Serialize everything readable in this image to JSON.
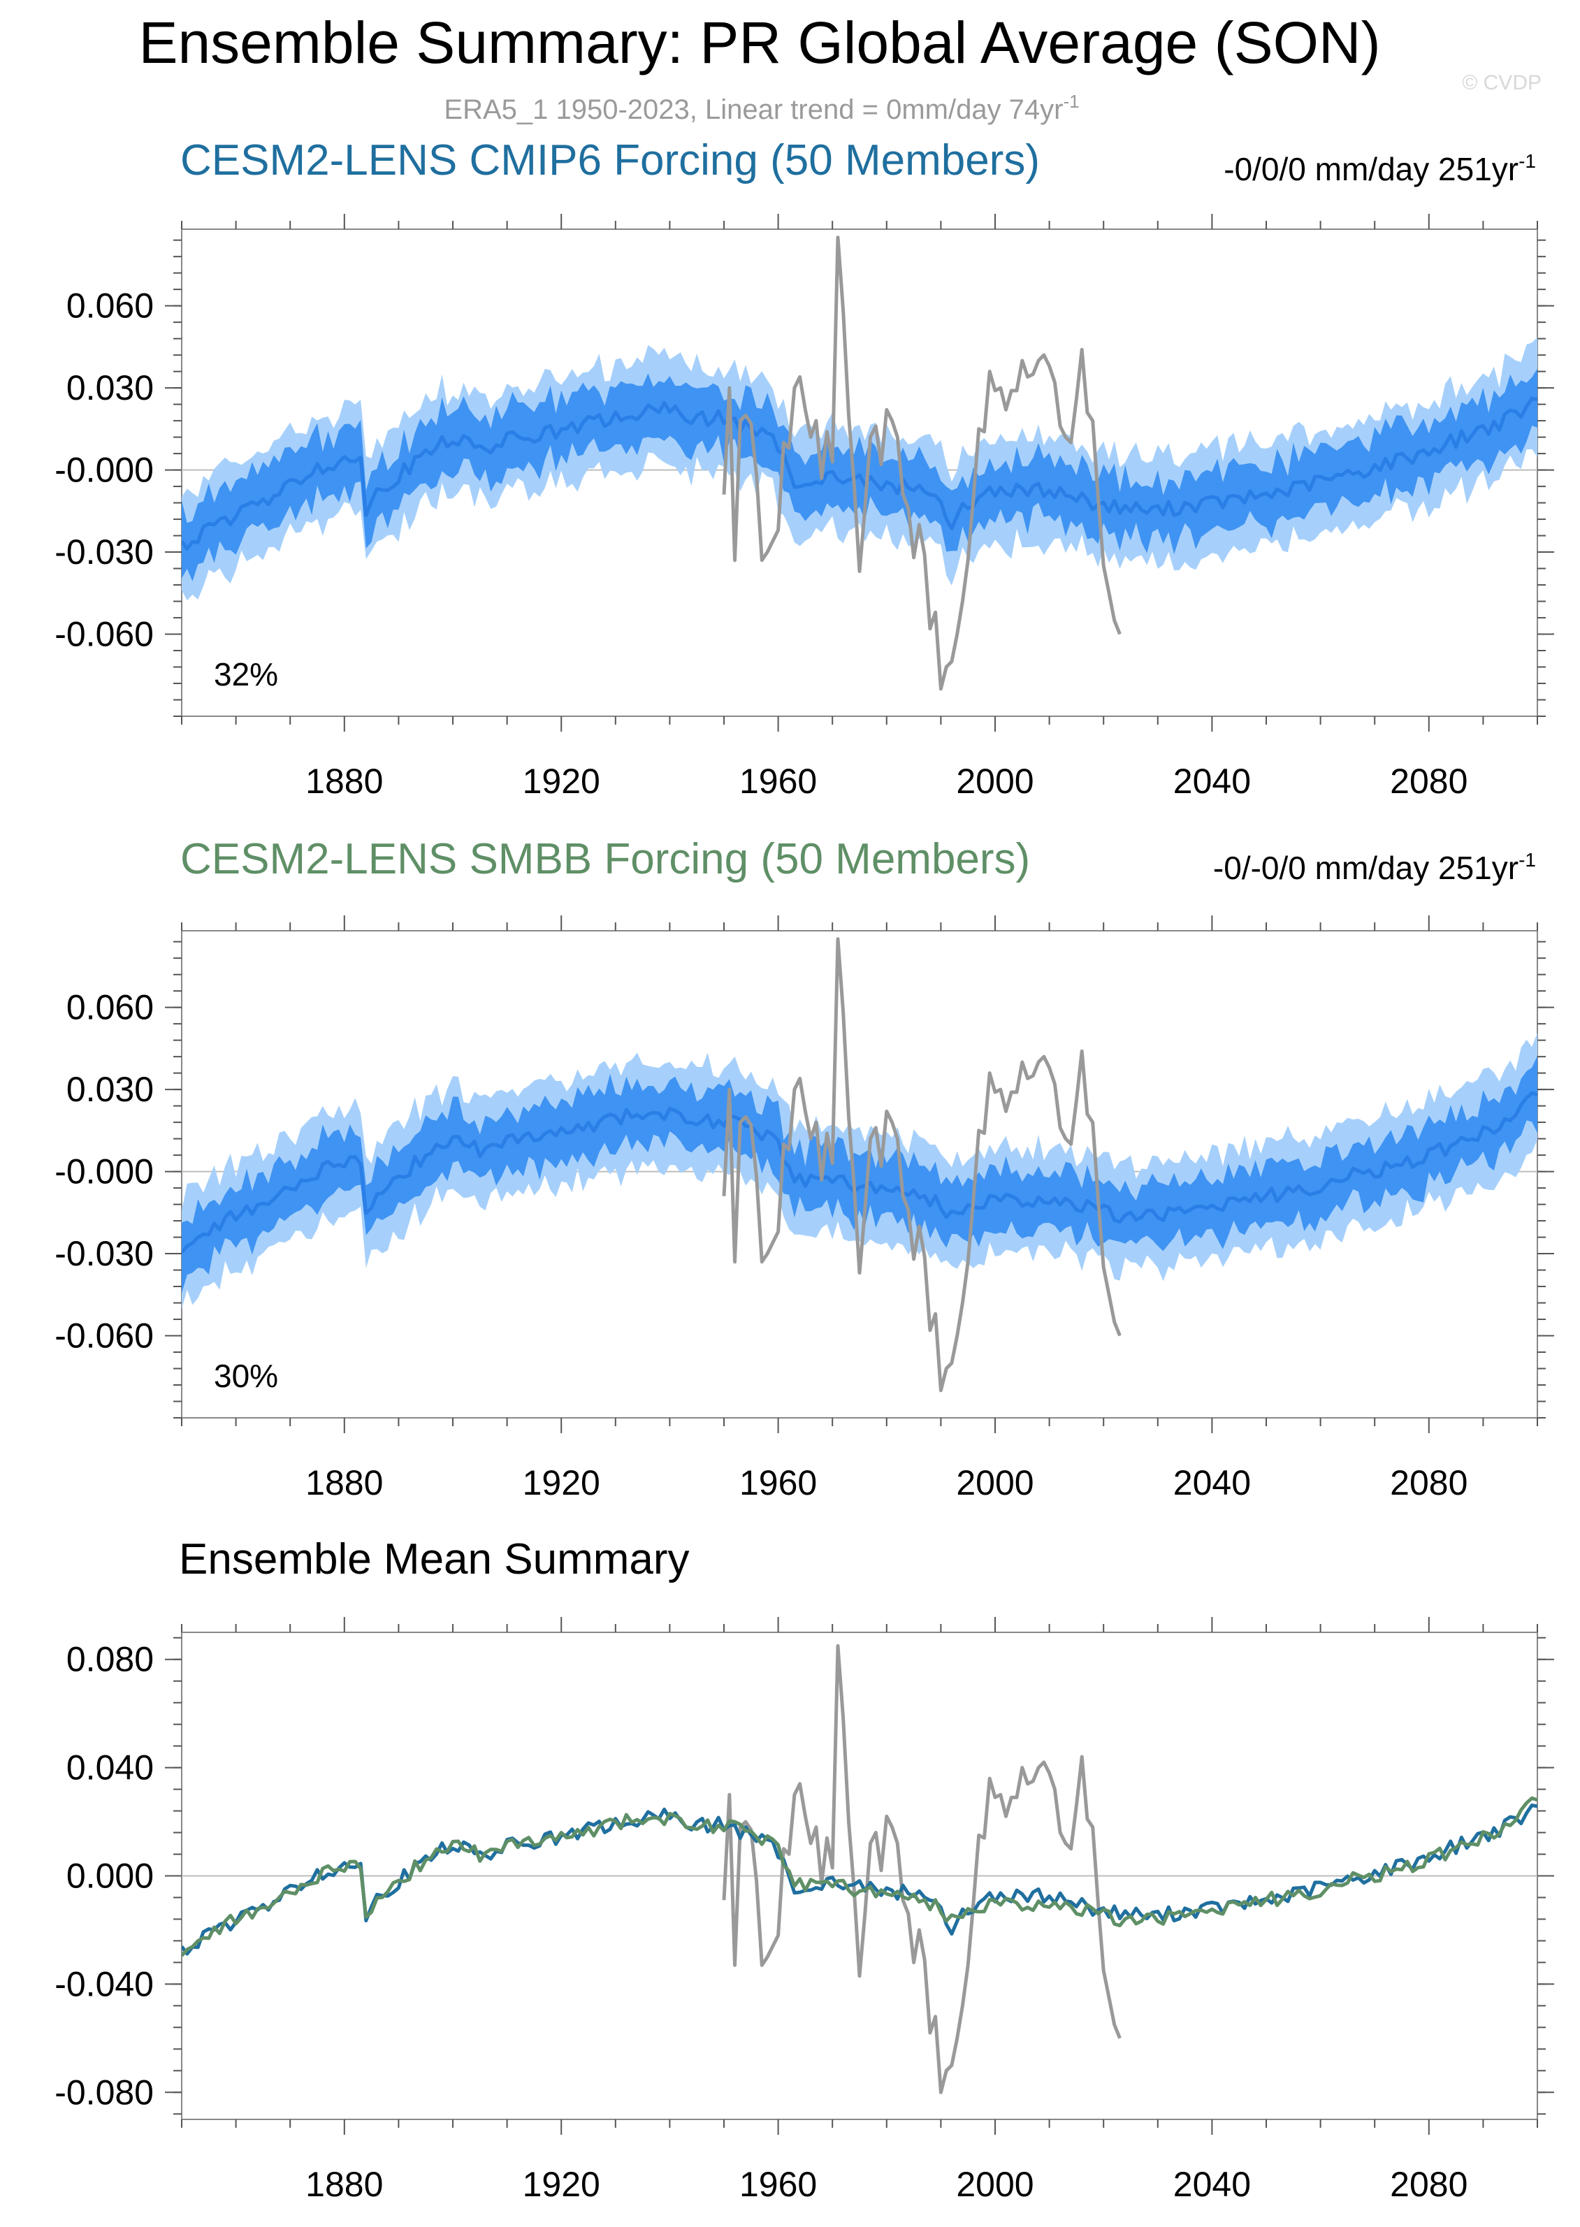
{
  "header": {
    "title": "Ensemble Summary: PR Global Average (SON)",
    "subtitle": "ERA5_1 1950-2023, Linear trend = 0mm/day 74yr",
    "subtitle_sup": "-1",
    "watermark": "© CVDP"
  },
  "colors": {
    "obs": "#999999",
    "band_outer": "#a6d0fb",
    "band_inner": "#3f93f2",
    "mean_line": "#2a7ee6",
    "cmip6_title": "#1f6f9f",
    "smbb_title": "#5f8f66",
    "zero_line": "#bdbdbd"
  },
  "panels": [
    {
      "title": "CESM2-LENS CMIP6 Forcing (50 Members)",
      "trend_label": "-0/0/0 mm/day 251yr",
      "trend_sup": "-1",
      "percent_label": "32%"
    },
    {
      "title": "CESM2-LENS SMBB Forcing (50 Members)",
      "trend_label": "-0/-0/0 mm/day 251yr",
      "trend_sup": "-1",
      "percent_label": "30%"
    },
    {
      "title": "Ensemble Mean Summary"
    }
  ],
  "chart_data": [
    {
      "type": "area",
      "title": "CESM2-LENS CMIP6 Forcing (50 Members)",
      "xlabel": "",
      "ylabel": "mm/day",
      "xlim": [
        1850,
        2100
      ],
      "ylim": [
        -0.09,
        0.088
      ],
      "x_ticks": [
        1880,
        1920,
        1960,
        2000,
        2040,
        2080
      ],
      "y_ticks": [
        0.06,
        0.03,
        0.0,
        -0.03,
        -0.06
      ],
      "y_tick_labels": [
        "0.060",
        "0.030",
        "-0.000",
        "-0.030",
        "-0.060"
      ],
      "series": [
        {
          "name": "Ensemble mean",
          "anchors": [
            [
              1850,
              -0.028
            ],
            [
              1855,
              -0.022
            ],
            [
              1860,
              -0.016
            ],
            [
              1865,
              -0.012
            ],
            [
              1870,
              -0.006
            ],
            [
              1875,
              0.001
            ],
            [
              1880,
              0.004
            ],
            [
              1883,
              0.003
            ],
            [
              1884,
              -0.014
            ],
            [
              1886,
              -0.008
            ],
            [
              1890,
              -0.002
            ],
            [
              1895,
              0.006
            ],
            [
              1900,
              0.012
            ],
            [
              1905,
              0.007
            ],
            [
              1910,
              0.011
            ],
            [
              1915,
              0.013
            ],
            [
              1920,
              0.014
            ],
            [
              1925,
              0.017
            ],
            [
              1930,
              0.019
            ],
            [
              1935,
              0.021
            ],
            [
              1940,
              0.022
            ],
            [
              1945,
              0.019
            ],
            [
              1950,
              0.019
            ],
            [
              1955,
              0.015
            ],
            [
              1960,
              0.009
            ],
            [
              1963,
              -0.005
            ],
            [
              1965,
              -0.003
            ],
            [
              1970,
              -0.002
            ],
            [
              1975,
              -0.004
            ],
            [
              1980,
              -0.006
            ],
            [
              1985,
              -0.006
            ],
            [
              1990,
              -0.011
            ],
            [
              1992,
              -0.02
            ],
            [
              1995,
              -0.012
            ],
            [
              2000,
              -0.007
            ],
            [
              2005,
              -0.008
            ],
            [
              2010,
              -0.007
            ],
            [
              2015,
              -0.01
            ],
            [
              2020,
              -0.013
            ],
            [
              2025,
              -0.014
            ],
            [
              2030,
              -0.015
            ],
            [
              2035,
              -0.013
            ],
            [
              2040,
              -0.012
            ],
            [
              2045,
              -0.011
            ],
            [
              2050,
              -0.009
            ],
            [
              2055,
              -0.007
            ],
            [
              2060,
              -0.004
            ],
            [
              2065,
              -0.002
            ],
            [
              2070,
              0.001
            ],
            [
              2075,
              0.004
            ],
            [
              2080,
              0.007
            ],
            [
              2085,
              0.011
            ],
            [
              2090,
              0.015
            ],
            [
              2095,
              0.019
            ],
            [
              2100,
              0.025
            ]
          ]
        },
        {
          "name": "Inner band half-width",
          "value": 0.011
        },
        {
          "name": "Outer band half-width",
          "value": 0.019
        },
        {
          "name": "ERA5_1 observed",
          "x": [
            1950,
            1951,
            1952,
            1953,
            1954,
            1955,
            1956,
            1957,
            1958,
            1959,
            1960,
            1961,
            1962,
            1963,
            1964,
            1965,
            1966,
            1967,
            1968,
            1969,
            1970,
            1971,
            1972,
            1973,
            1974,
            1975,
            1976,
            1977,
            1978,
            1979,
            1980,
            1981,
            1982,
            1983,
            1984,
            1985,
            1986,
            1987,
            1988,
            1989,
            1990,
            1991,
            1992,
            1993,
            1994,
            1995,
            1996,
            1997,
            1998,
            1999,
            2000,
            2001,
            2002,
            2003,
            2004,
            2005,
            2006,
            2007,
            2008,
            2009,
            2010,
            2011,
            2012,
            2013,
            2014,
            2015,
            2016,
            2017,
            2018,
            2019,
            2020,
            2021,
            2022,
            2023
          ],
          "values": [
            -0.009,
            0.03,
            -0.033,
            0.018,
            0.02,
            0.017,
            -0.002,
            -0.033,
            -0.03,
            -0.026,
            -0.022,
            0.01,
            0.008,
            0.03,
            0.034,
            0.022,
            0.012,
            0.018,
            -0.003,
            0.014,
            0.003,
            0.085,
            0.058,
            0.02,
            -0.005,
            -0.037,
            -0.014,
            0.012,
            0.016,
            0.002,
            0.022,
            0.018,
            0.012,
            -0.009,
            -0.014,
            -0.032,
            -0.02,
            -0.031,
            -0.058,
            -0.052,
            -0.08,
            -0.072,
            -0.07,
            -0.06,
            -0.048,
            -0.033,
            -0.01,
            0.015,
            0.014,
            0.036,
            0.029,
            0.03,
            0.022,
            0.029,
            0.029,
            0.04,
            0.034,
            0.035,
            0.04,
            0.042,
            0.038,
            0.032,
            0.016,
            0.012,
            0.01,
            0.026,
            0.044,
            0.021,
            0.018,
            -0.01,
            -0.035,
            -0.045,
            -0.055,
            -0.06
          ]
        }
      ],
      "annotations": [
        "32%"
      ]
    },
    {
      "type": "area",
      "title": "CESM2-LENS SMBB Forcing (50 Members)",
      "xlabel": "",
      "ylabel": "mm/day",
      "xlim": [
        1850,
        2100
      ],
      "ylim": [
        -0.09,
        0.088
      ],
      "x_ticks": [
        1880,
        1920,
        1960,
        2000,
        2040,
        2080
      ],
      "y_ticks": [
        0.06,
        0.03,
        0.0,
        -0.03,
        -0.06
      ],
      "y_tick_labels": [
        "0.060",
        "0.030",
        "-0.000",
        "-0.030",
        "-0.060"
      ],
      "series": [
        {
          "name": "Ensemble mean",
          "anchors": [
            [
              1850,
              -0.028
            ],
            [
              1855,
              -0.022
            ],
            [
              1860,
              -0.016
            ],
            [
              1865,
              -0.012
            ],
            [
              1870,
              -0.006
            ],
            [
              1875,
              0.0
            ],
            [
              1880,
              0.004
            ],
            [
              1883,
              0.003
            ],
            [
              1884,
              -0.014
            ],
            [
              1886,
              -0.008
            ],
            [
              1890,
              -0.002
            ],
            [
              1895,
              0.006
            ],
            [
              1900,
              0.012
            ],
            [
              1905,
              0.008
            ],
            [
              1910,
              0.011
            ],
            [
              1915,
              0.013
            ],
            [
              1920,
              0.014
            ],
            [
              1925,
              0.017
            ],
            [
              1930,
              0.02
            ],
            [
              1935,
              0.021
            ],
            [
              1940,
              0.021
            ],
            [
              1945,
              0.019
            ],
            [
              1950,
              0.018
            ],
            [
              1955,
              0.016
            ],
            [
              1960,
              0.012
            ],
            [
              1963,
              -0.004
            ],
            [
              1965,
              -0.003
            ],
            [
              1970,
              -0.003
            ],
            [
              1975,
              -0.005
            ],
            [
              1980,
              -0.007
            ],
            [
              1985,
              -0.008
            ],
            [
              1990,
              -0.012
            ],
            [
              1992,
              -0.017
            ],
            [
              1995,
              -0.012
            ],
            [
              2000,
              -0.01
            ],
            [
              2005,
              -0.01
            ],
            [
              2010,
              -0.011
            ],
            [
              2015,
              -0.012
            ],
            [
              2020,
              -0.015
            ],
            [
              2025,
              -0.016
            ],
            [
              2030,
              -0.016
            ],
            [
              2035,
              -0.014
            ],
            [
              2040,
              -0.012
            ],
            [
              2045,
              -0.011
            ],
            [
              2050,
              -0.009
            ],
            [
              2055,
              -0.007
            ],
            [
              2060,
              -0.005
            ],
            [
              2065,
              -0.002
            ],
            [
              2070,
              0.0
            ],
            [
              2075,
              0.003
            ],
            [
              2080,
              0.006
            ],
            [
              2085,
              0.01
            ],
            [
              2090,
              0.014
            ],
            [
              2095,
              0.019
            ],
            [
              2100,
              0.029
            ]
          ]
        },
        {
          "name": "Inner band half-width",
          "value": 0.011
        },
        {
          "name": "Outer band half-width",
          "value": 0.019
        },
        {
          "name": "ERA5_1 observed",
          "ref": "same as panel 1"
        }
      ],
      "annotations": [
        "30%"
      ]
    },
    {
      "type": "line",
      "title": "Ensemble Mean Summary",
      "xlabel": "",
      "ylabel": "mm/day",
      "xlim": [
        1850,
        2100
      ],
      "ylim": [
        -0.09,
        0.09
      ],
      "x_ticks": [
        1880,
        1920,
        1960,
        2000,
        2040,
        2080
      ],
      "y_ticks": [
        0.08,
        0.04,
        0.0,
        -0.04,
        -0.08
      ],
      "y_tick_labels": [
        "0.080",
        "0.040",
        "0.000",
        "-0.040",
        "-0.080"
      ],
      "series": [
        {
          "name": "CESM2-LENS CMIP6 mean",
          "color": "#1f6f9f",
          "ref": "panel 1 ensemble mean"
        },
        {
          "name": "CESM2-LENS SMBB mean",
          "color": "#5f8f66",
          "ref": "panel 2 ensemble mean"
        },
        {
          "name": "ERA5_1 observed",
          "color": "#999999",
          "ref": "panel 1 observed"
        }
      ]
    }
  ]
}
